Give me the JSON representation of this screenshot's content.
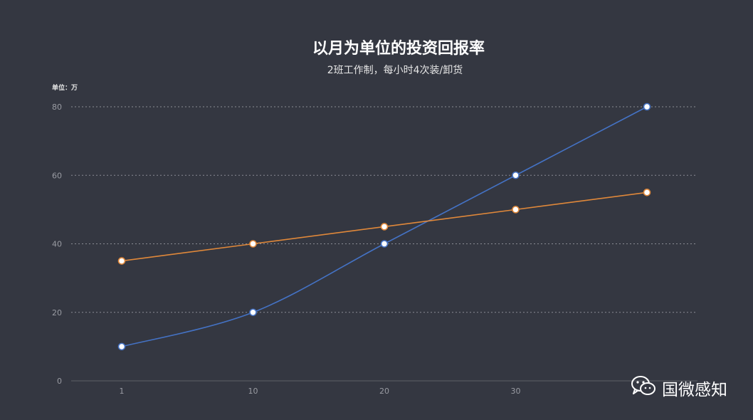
{
  "chart_data": {
    "type": "line",
    "title": "以月为单位的投资回报率",
    "subtitle": "2班工作制，每小时4次装/卸货",
    "unit_label": "单位：万",
    "x": [
      1,
      10,
      20,
      30,
      40
    ],
    "x_tick_labels": [
      "1",
      "10",
      "20",
      "30"
    ],
    "ylim": [
      0,
      80
    ],
    "yticks": [
      0,
      20,
      40,
      60,
      80
    ],
    "grid": true,
    "series": [
      {
        "values": [
          10,
          20,
          40,
          60,
          80
        ],
        "color": "#4472c4",
        "smooth": true
      },
      {
        "values": [
          35,
          40,
          45,
          50,
          55
        ],
        "color": "#e0883a",
        "smooth": false
      }
    ]
  },
  "watermark": {
    "text": "国微感知",
    "icon": "wechat-icon"
  },
  "colors": {
    "background": "#343741",
    "grid": "#8a8c94",
    "axis": "#5e6068"
  }
}
